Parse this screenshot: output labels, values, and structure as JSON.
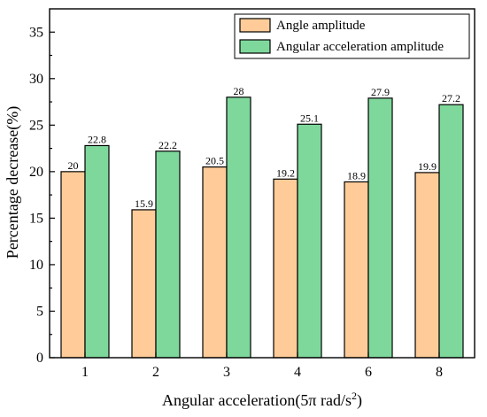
{
  "chart_data": {
    "type": "bar",
    "categories": [
      "1",
      "2",
      "3",
      "4",
      "6",
      "8"
    ],
    "series": [
      {
        "name": "Angle amplitude",
        "color": "#ffcc99",
        "values": [
          20,
          15.9,
          20.5,
          19.2,
          18.9,
          19.9
        ],
        "labels": [
          "20",
          "15.9",
          "20.5",
          "19.2",
          "18.9",
          "19.9"
        ]
      },
      {
        "name": "Angular acceleration amplitude",
        "color": "#7fd89b",
        "values": [
          22.8,
          22.2,
          28,
          25.1,
          27.9,
          27.2
        ],
        "labels": [
          "22.8",
          "22.2",
          "28",
          "25.1",
          "27.9",
          "27.2"
        ]
      }
    ],
    "title": "",
    "xlabel": "Angular acceleration(5π rad/s",
    "xlabel_sup": "2",
    "xlabel_end": ")",
    "ylabel": "Percentage decrease(%)",
    "ylim": [
      0,
      37.5
    ],
    "yticks": [
      "0",
      "5",
      "10",
      "15",
      "20",
      "25",
      "30",
      "35"
    ],
    "grid": false,
    "legend_position": "top-right"
  }
}
